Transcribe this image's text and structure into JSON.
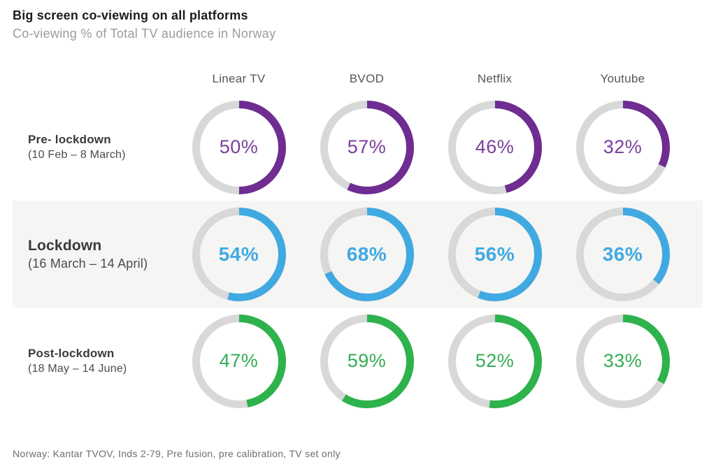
{
  "title": "Big screen co-viewing on all platforms",
  "subtitle": "Co-viewing % of Total TV audience in Norway",
  "footnote": "Norway: Kantar TVOV, Inds 2-79, Pre fusion, pre calibration, TV set only",
  "colors": {
    "track": "#d8d8d8",
    "highlight_band": "#f5f5f3",
    "pre_lockdown_purple": "#6f2c91",
    "lockdown_blue": "#41a9e1",
    "post_lockdown_green": "#2eb24c"
  },
  "chart_data": {
    "type": "donut-grid",
    "unit": "%",
    "arc_start": "top",
    "direction": "clockwise",
    "categories": [
      "Linear TV",
      "BVOD",
      "Netflix",
      "Youtube"
    ],
    "rows": [
      {
        "id": "pre-lockdown",
        "label": "Pre- lockdown",
        "dates": "(10 Feb – 8 March)",
        "arc_color": "#6f2c91",
        "text_color": "#7c3f9e",
        "highlighted": false,
        "values": [
          50,
          57,
          46,
          32
        ]
      },
      {
        "id": "lockdown",
        "label": "Lockdown",
        "dates": "(16 March – 14 April)",
        "arc_color": "#41a9e1",
        "text_color": "#41a9e1",
        "highlighted": true,
        "values": [
          54,
          68,
          56,
          36
        ]
      },
      {
        "id": "post-lockdown",
        "label": "Post-lockdown",
        "dates": "(18 May – 14 June)",
        "arc_color": "#2eb24c",
        "text_color": "#34ad56",
        "highlighted": false,
        "values": [
          47,
          59,
          52,
          33
        ]
      }
    ]
  }
}
